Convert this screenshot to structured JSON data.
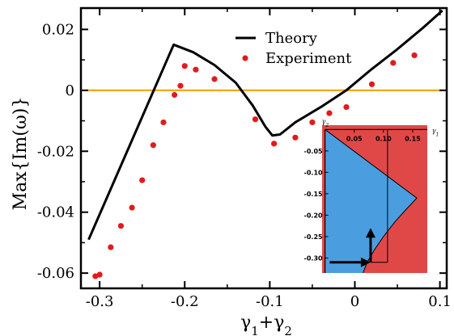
{
  "chart_data": {
    "type": "line",
    "xlabel": "γ1+γ2",
    "ylabel": "Max{Im(ω)}",
    "xlim": [
      -0.322,
      0.108
    ],
    "ylim": [
      -0.065,
      0.027
    ],
    "xticks": [
      -0.3,
      -0.2,
      -0.1,
      0,
      0.1
    ],
    "xtick_labels": [
      "-0.3",
      "-0.2",
      "-0.1",
      "0",
      "0.1"
    ],
    "yticks": [
      -0.06,
      -0.04,
      -0.02,
      0,
      0.02
    ],
    "ytick_labels": [
      "-0.06",
      "-0.04",
      "-0.02",
      "0",
      "0.02"
    ],
    "legend": {
      "position": "top-center",
      "entries": [
        "Theory",
        "Experiment"
      ]
    },
    "series": [
      {
        "name": "Theory",
        "style": "line",
        "color": "#000000",
        "x": [
          -0.313,
          -0.213,
          -0.19,
          -0.165,
          -0.14,
          -0.12,
          -0.105,
          -0.097,
          -0.088,
          -0.07,
          -0.04,
          -0.01,
          0.02,
          0.05,
          0.08,
          0.103
        ],
        "y": [
          -0.049,
          0.015,
          0.0125,
          0.0083,
          0.0025,
          -0.005,
          -0.012,
          -0.0148,
          -0.0145,
          -0.0105,
          -0.0055,
          0.0,
          0.007,
          0.0135,
          0.0205,
          0.0262
        ]
      },
      {
        "name": "Experiment",
        "style": "scatter",
        "color": "#e31a1c",
        "x": [
          -0.305,
          -0.3,
          -0.287,
          -0.275,
          -0.262,
          -0.25,
          -0.237,
          -0.225,
          -0.212,
          -0.205,
          -0.2,
          -0.187,
          -0.165,
          -0.117,
          -0.095,
          -0.07,
          -0.05,
          -0.03,
          -0.01,
          0.02,
          0.045,
          0.07
        ],
        "y": [
          -0.061,
          -0.0605,
          -0.0515,
          -0.0445,
          -0.0385,
          -0.0295,
          -0.018,
          -0.0105,
          -0.0015,
          0.0015,
          0.008,
          0.0068,
          0.0037,
          -0.0095,
          -0.0175,
          -0.0155,
          -0.0105,
          -0.0075,
          -0.0055,
          0.002,
          0.009,
          0.0115
        ]
      }
    ],
    "reference_line": {
      "y": 0,
      "color": "#f4a300"
    },
    "inset": {
      "xlabel": "γ1",
      "ylabel": "γ2",
      "xlim": [
        -0.005,
        0.175
      ],
      "ylim": [
        -0.335,
        0.01
      ],
      "xticks": [
        0.05,
        0.1,
        0.15
      ],
      "xtick_labels": [
        "0.05",
        "0.10",
        "0.15"
      ],
      "yticks": [
        -0.05,
        -0.1,
        -0.15,
        -0.2,
        -0.25,
        -0.3
      ],
      "ytick_labels": [
        "-0.05",
        "-0.10",
        "-0.15",
        "-0.20",
        "-0.25",
        "-0.30"
      ],
      "region_colors": {
        "stable": "#4a9ee0",
        "unstable": "#e04848"
      },
      "boundary": {
        "x": [
          0.0,
          0.157,
          0.14,
          0.12,
          0.1,
          0.085,
          0.072,
          0.065
        ],
        "y": [
          0.0,
          -0.16,
          -0.185,
          -0.215,
          -0.25,
          -0.28,
          -0.31,
          -0.335
        ]
      },
      "path": {
        "x": [
          0.008,
          0.078,
          0.078
        ],
        "y": [
          -0.31,
          -0.31,
          -0.23
        ],
        "color": "#000000"
      },
      "guide_line": {
        "x": 0.107,
        "y_from": 0.0,
        "y_to": -0.31
      }
    }
  }
}
